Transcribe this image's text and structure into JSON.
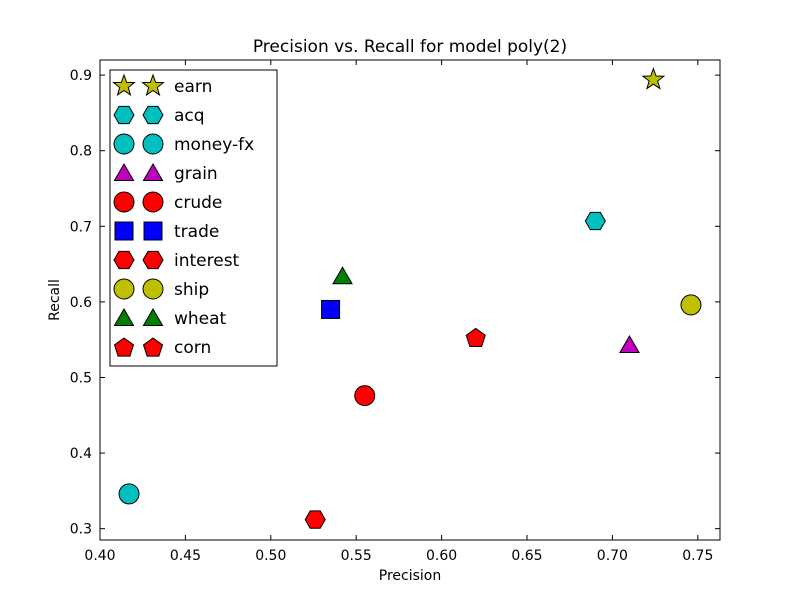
{
  "chart_data": {
    "type": "scatter",
    "title": "Precision vs. Recall for model poly(2)",
    "xlabel": "Precision",
    "ylabel": "Recall",
    "xlim": [
      0.4,
      0.763
    ],
    "ylim": [
      0.285,
      0.92
    ],
    "xticks": [
      0.4,
      0.45,
      0.5,
      0.55,
      0.6,
      0.65,
      0.7,
      0.75
    ],
    "xtick_labels": [
      "0.40",
      "0.45",
      "0.50",
      "0.55",
      "0.60",
      "0.65",
      "0.70",
      "0.75"
    ],
    "yticks": [
      0.3,
      0.4,
      0.5,
      0.6,
      0.7,
      0.8,
      0.9
    ],
    "ytick_labels": [
      "0.3",
      "0.4",
      "0.5",
      "0.6",
      "0.7",
      "0.8",
      "0.9"
    ],
    "grid": false,
    "legend_position": "top-left",
    "series": [
      {
        "name": "earn",
        "marker": "star",
        "color": "#bfbf00",
        "x": 0.724,
        "y": 0.894
      },
      {
        "name": "acq",
        "marker": "hexagon",
        "color": "#00bfbf",
        "x": 0.69,
        "y": 0.707
      },
      {
        "name": "money-fx",
        "marker": "circle",
        "color": "#00bfbf",
        "x": 0.417,
        "y": 0.346
      },
      {
        "name": "grain",
        "marker": "triangle",
        "color": "#bf00bf",
        "x": 0.71,
        "y": 0.543
      },
      {
        "name": "crude",
        "marker": "circle",
        "color": "#ff0000",
        "x": 0.555,
        "y": 0.476
      },
      {
        "name": "trade",
        "marker": "square",
        "color": "#0000ff",
        "x": 0.535,
        "y": 0.59
      },
      {
        "name": "interest",
        "marker": "hexagon",
        "color": "#ff0000",
        "x": 0.526,
        "y": 0.312
      },
      {
        "name": "ship",
        "marker": "circle",
        "color": "#bfbf00",
        "x": 0.746,
        "y": 0.596
      },
      {
        "name": "wheat",
        "marker": "triangle",
        "color": "#008000",
        "x": 0.542,
        "y": 0.634
      },
      {
        "name": "corn",
        "marker": "pentagon",
        "color": "#ff0000",
        "x": 0.62,
        "y": 0.553
      }
    ]
  }
}
